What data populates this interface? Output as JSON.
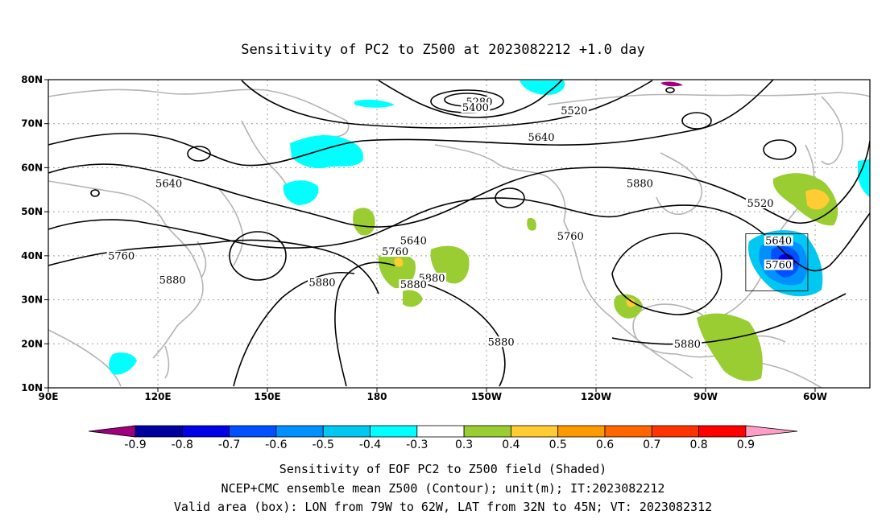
{
  "title": "Sensitivity of PC2 to Z500 at 2023082212 +1.0 day",
  "lat_labels": [
    "80N",
    "70N",
    "60N",
    "50N",
    "40N",
    "30N",
    "20N",
    "10N"
  ],
  "lon_labels": [
    "90E",
    "120E",
    "150E",
    "180",
    "150W",
    "120W",
    "90W",
    "60W"
  ],
  "contour_labels": [
    {
      "text": "5280",
      "lon": 208,
      "lat": 74.5
    },
    {
      "text": "5400",
      "lon": 207,
      "lat": 73.2
    },
    {
      "text": "5520",
      "lon": 234,
      "lat": 72.5
    },
    {
      "text": "5640",
      "lon": 225,
      "lat": 66.5
    },
    {
      "text": "5640",
      "lon": 123,
      "lat": 56.0
    },
    {
      "text": "5640",
      "lon": 190,
      "lat": 43.0
    },
    {
      "text": "5640",
      "lon": 290,
      "lat": 43.0
    },
    {
      "text": "5520",
      "lon": 285,
      "lat": 51.5
    },
    {
      "text": "5760",
      "lon": 110,
      "lat": 39.5
    },
    {
      "text": "5760",
      "lon": 185,
      "lat": 40.5
    },
    {
      "text": "5760",
      "lon": 233,
      "lat": 44.0
    },
    {
      "text": "5760",
      "lon": 290,
      "lat": 37.5
    },
    {
      "text": "5880",
      "lon": 124,
      "lat": 34.0
    },
    {
      "text": "5880",
      "lon": 165,
      "lat": 33.5
    },
    {
      "text": "5880",
      "lon": 195,
      "lat": 34.5
    },
    {
      "text": "5880",
      "lon": 190,
      "lat": 33.0
    },
    {
      "text": "5880",
      "lon": 252,
      "lat": 56.0
    },
    {
      "text": "5880",
      "lon": 214,
      "lat": 20.0
    },
    {
      "text": "5880",
      "lon": 265,
      "lat": 19.5
    }
  ],
  "valid_box": {
    "lon_min": 281,
    "lon_max": 298,
    "lat_min": 32,
    "lat_max": 45
  },
  "colorbar": {
    "ticks": [
      "-0.9",
      "-0.8",
      "-0.7",
      "-0.6",
      "-0.5",
      "-0.4",
      "-0.3",
      "0.3",
      "0.4",
      "0.5",
      "0.6",
      "0.7",
      "0.8",
      "0.9"
    ],
    "colors": [
      "#a0007f",
      "#0000a0",
      "#0000e6",
      "#0050ff",
      "#0090ff",
      "#00c8f0",
      "#00ffff",
      "#ffffff",
      "#9acd32",
      "#ffcc33",
      "#ff9900",
      "#ff6600",
      "#ff3300",
      "#ff0000",
      "#ff9ec7"
    ]
  },
  "captions": [
    "Sensitivity of EOF PC2 to Z500 field (Shaded)",
    "NCEP+CMC ensemble mean Z500 (Contour); unit(m); IT:2023082212",
    "Valid area (box): LON from 79W to 62W, LAT from 32N to 45N; VT: 2023082312"
  ],
  "colors": {
    "coast": "#b4b4b4",
    "contour": "#000000",
    "grid": "#a0a0a0"
  }
}
